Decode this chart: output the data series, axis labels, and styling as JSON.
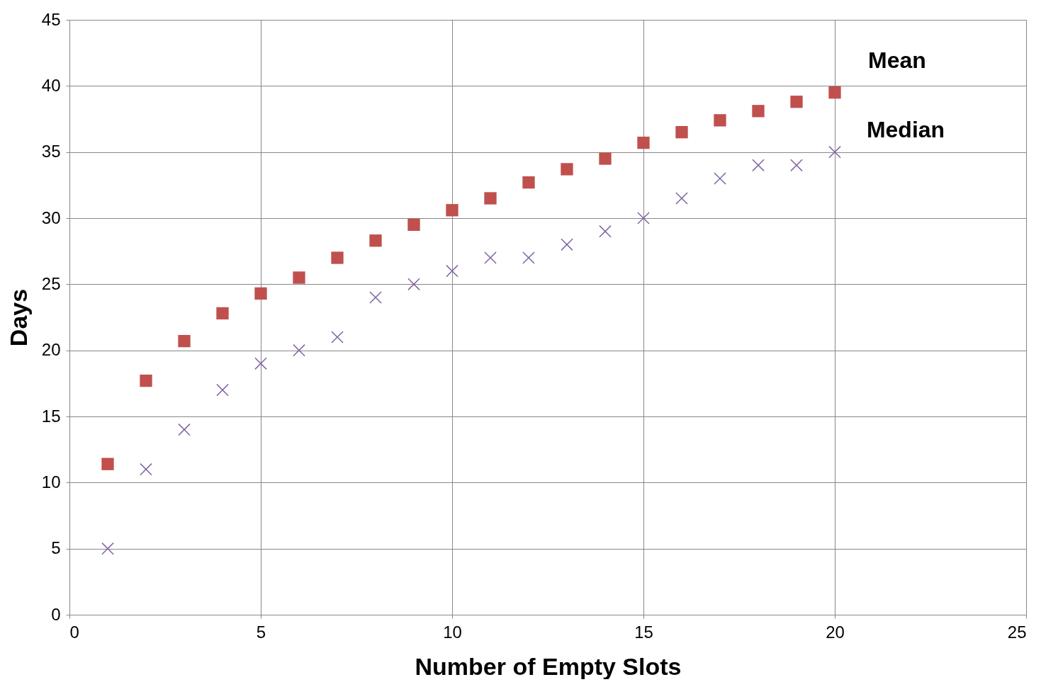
{
  "chart_data": {
    "type": "scatter",
    "xlabel": "Number of Empty Slots",
    "ylabel": "Days",
    "x": [
      1,
      2,
      3,
      4,
      5,
      6,
      7,
      8,
      9,
      10,
      11,
      12,
      13,
      14,
      15,
      16,
      17,
      18,
      19,
      20
    ],
    "series": [
      {
        "name": "Mean",
        "color": "#c0504d",
        "marker": "square",
        "values": [
          11.4,
          17.7,
          20.7,
          22.8,
          24.3,
          25.5,
          27.0,
          28.3,
          29.5,
          30.6,
          31.5,
          32.7,
          33.7,
          34.5,
          35.7,
          36.5,
          37.4,
          38.1,
          38.8,
          39.5
        ]
      },
      {
        "name": "Median",
        "color": "#8064a2",
        "marker": "cross",
        "values": [
          5,
          11,
          14,
          17,
          19,
          20,
          21,
          24,
          25,
          26,
          27,
          27,
          28,
          29,
          30,
          31.5,
          33,
          34,
          34,
          35
        ]
      }
    ],
    "xlim": [
      0,
      25
    ],
    "xticks": [
      0,
      5,
      10,
      15,
      20,
      25
    ],
    "ylim": [
      0,
      45
    ],
    "yticks": [
      0,
      5,
      10,
      15,
      20,
      25,
      30,
      35,
      40,
      45
    ],
    "grid": true,
    "legend": false
  }
}
